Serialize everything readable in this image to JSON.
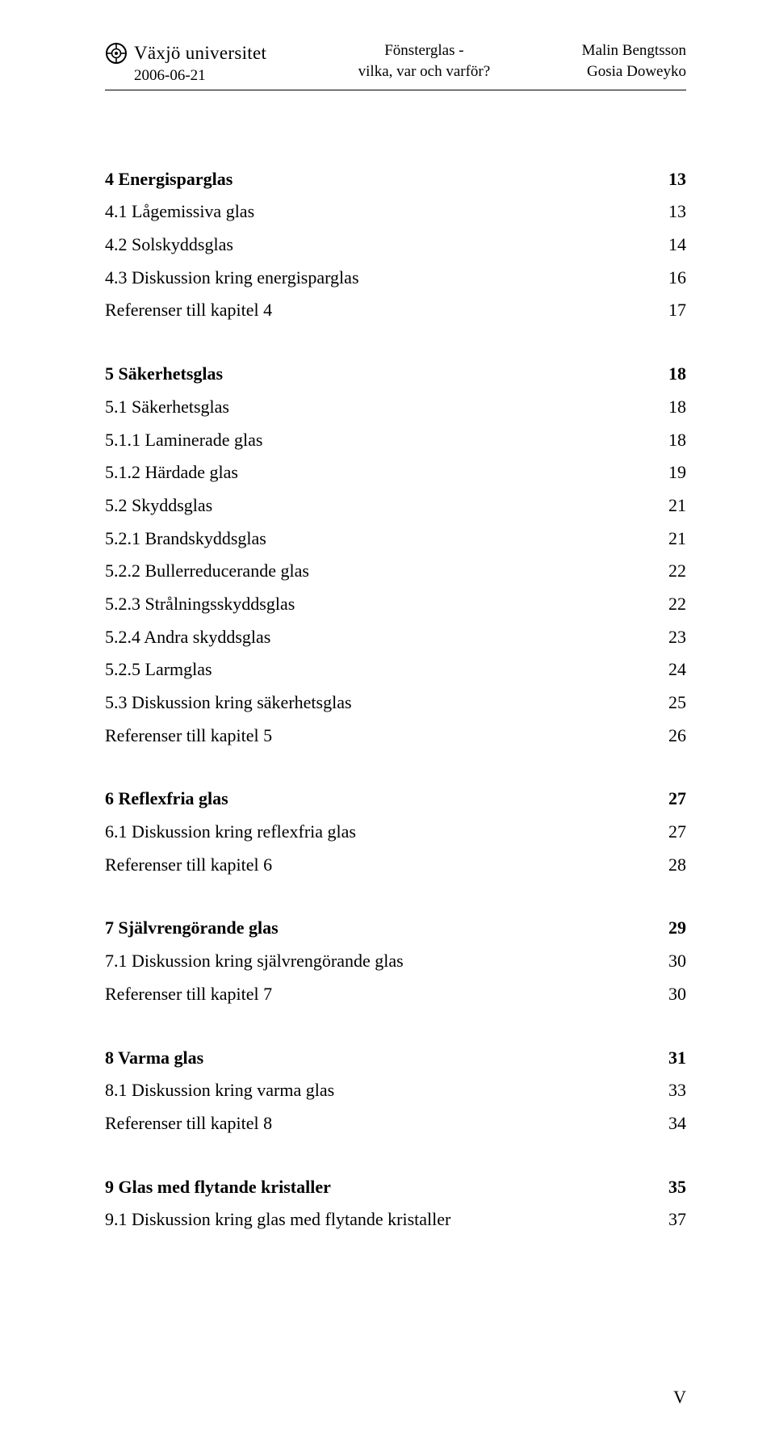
{
  "header": {
    "university": "Växjö universitet",
    "date": "2006-06-21",
    "center_line1": "Fönsterglas -",
    "center_line2": "vilka, var och varför?",
    "author1": "Malin Bengtsson",
    "author2": "Gosia Doweyko"
  },
  "toc": [
    {
      "items": [
        {
          "label": "4 Energisparglas",
          "page": "13",
          "bold": true
        },
        {
          "label": "4.1 Lågemissiva glas",
          "page": "13",
          "bold": false
        },
        {
          "label": "4.2 Solskyddsglas",
          "page": "14",
          "bold": false
        },
        {
          "label": "4.3 Diskussion kring energisparglas",
          "page": "16",
          "bold": false
        },
        {
          "label": "Referenser till kapitel 4",
          "page": "17",
          "bold": false
        }
      ]
    },
    {
      "items": [
        {
          "label": "5 Säkerhetsglas",
          "page": "18",
          "bold": true
        },
        {
          "label": "5.1 Säkerhetsglas",
          "page": "18",
          "bold": false
        },
        {
          "label": "5.1.1 Laminerade glas",
          "page": "18",
          "bold": false
        },
        {
          "label": "5.1.2 Härdade glas",
          "page": "19",
          "bold": false
        },
        {
          "label": "5.2 Skyddsglas",
          "page": "21",
          "bold": false
        },
        {
          "label": "5.2.1 Brandskyddsglas",
          "page": "21",
          "bold": false
        },
        {
          "label": "5.2.2 Bullerreducerande glas",
          "page": "22",
          "bold": false
        },
        {
          "label": "5.2.3 Strålningsskyddsglas",
          "page": "22",
          "bold": false
        },
        {
          "label": "5.2.4 Andra skyddsglas",
          "page": "23",
          "bold": false
        },
        {
          "label": "5.2.5 Larmglas",
          "page": "24",
          "bold": false
        },
        {
          "label": "5.3 Diskussion kring säkerhetsglas",
          "page": "25",
          "bold": false
        },
        {
          "label": "Referenser till kapitel 5",
          "page": "26",
          "bold": false
        }
      ]
    },
    {
      "items": [
        {
          "label": "6 Reflexfria glas",
          "page": "27",
          "bold": true
        },
        {
          "label": "6.1 Diskussion kring reflexfria glas",
          "page": "27",
          "bold": false
        },
        {
          "label": "Referenser till kapitel 6",
          "page": "28",
          "bold": false
        }
      ]
    },
    {
      "items": [
        {
          "label": "7 Självrengörande glas",
          "page": "29",
          "bold": true
        },
        {
          "label": "7.1 Diskussion kring självrengörande glas",
          "page": "30",
          "bold": false
        },
        {
          "label": "Referenser till kapitel 7",
          "page": "30",
          "bold": false
        }
      ]
    },
    {
      "items": [
        {
          "label": "8 Varma glas",
          "page": "31",
          "bold": true
        },
        {
          "label": "8.1 Diskussion kring varma glas",
          "page": "33",
          "bold": false
        },
        {
          "label": "Referenser till kapitel 8",
          "page": "34",
          "bold": false
        }
      ]
    },
    {
      "items": [
        {
          "label": "9 Glas med flytande kristaller",
          "page": "35",
          "bold": true
        },
        {
          "label": "9.1 Diskussion kring glas med flytande kristaller",
          "page": "37",
          "bold": false
        }
      ]
    }
  ],
  "footer": {
    "page_numeral": "V"
  }
}
